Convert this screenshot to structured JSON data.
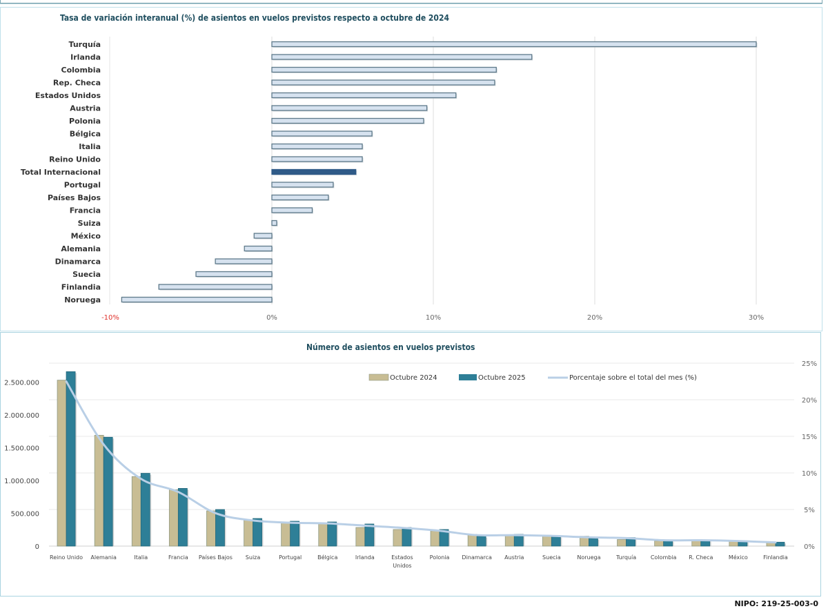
{
  "footer": {
    "nipo": "NIPO: 219-25-003-0"
  },
  "colors": {
    "bar_fill": "#d6e2ef",
    "bar_stroke": "#5f7a8a",
    "bar_total": "#2f5b88",
    "oct2024": "#c8bd94",
    "oct2025": "#2e7f97",
    "pct_line": "#b9cfe6",
    "negative_tick": "#e0302a",
    "title": "#1f4e5f"
  },
  "chart_data": [
    {
      "type": "bar",
      "orientation": "horizontal",
      "title": "Tasa de variación interanual (%) de asientos en vuelos previstos respecto a octubre de 2024",
      "categories": [
        "Turquía",
        "Irlanda",
        "Colombia",
        "Rep. Checa",
        "Estados Unidos",
        "Austria",
        "Polonia",
        "Bélgica",
        "Italia",
        "Reino Unido",
        "Total Internacional",
        "Portugal",
        "Países Bajos",
        "Francia",
        "Suiza",
        "México",
        "Alemania",
        "Dinamarca",
        "Suecia",
        "Finlandia",
        "Noruega"
      ],
      "values": [
        30.0,
        16.1,
        13.9,
        13.8,
        11.4,
        9.6,
        9.4,
        6.2,
        5.6,
        5.6,
        5.2,
        3.8,
        3.5,
        2.5,
        0.3,
        -1.1,
        -1.7,
        -3.5,
        -4.7,
        -7.0,
        -9.3
      ],
      "highlight": "Total Internacional",
      "xlim": [
        -10,
        30
      ],
      "xticks": [
        -10,
        0,
        10,
        20,
        30
      ],
      "xtick_labels": [
        "-10%",
        "0%",
        "10%",
        "20%",
        "30%"
      ],
      "grid": "vertical",
      "xlabel": "",
      "ylabel": ""
    },
    {
      "type": "bar",
      "title": "Número de asientos en vuelos previstos",
      "categories": [
        "Reino Unido",
        "Alemania",
        "Italia",
        "Francia",
        "Países Bajos",
        "Suiza",
        "Portugal",
        "Bélgica",
        "Irlanda",
        "Estados Unidos",
        "Polonia",
        "Dinamarca",
        "Austria",
        "Suecia",
        "Noruega",
        "Turquía",
        "Colombia",
        "R. Checa",
        "México",
        "Finlandia"
      ],
      "series": [
        {
          "name": "Octubre 2024",
          "type": "bar",
          "axis": "left",
          "values": [
            2530000,
            1690000,
            1060000,
            860000,
            537000,
            400000,
            368000,
            347000,
            284000,
            253000,
            232000,
            180000,
            165000,
            165000,
            150000,
            100000,
            80000,
            80000,
            78000,
            65000
          ]
        },
        {
          "name": "Octubre 2025",
          "type": "bar",
          "axis": "left",
          "values": [
            2660000,
            1660000,
            1110000,
            880000,
            558000,
            421000,
            379000,
            368000,
            337000,
            284000,
            253000,
            150000,
            180000,
            155000,
            118000,
            130000,
            90000,
            92000,
            77000,
            60000
          ]
        },
        {
          "name": "Porcentaje sobre el total del mes (%)",
          "type": "line",
          "axis": "right",
          "values": [
            22.5,
            13.9,
            9.2,
            7.4,
            4.5,
            3.5,
            3.2,
            3.1,
            2.8,
            2.5,
            2.1,
            1.5,
            1.5,
            1.4,
            1.2,
            1.1,
            0.8,
            0.8,
            0.7,
            0.5
          ]
        }
      ],
      "category_labels": [
        [
          "Reino Unido"
        ],
        [
          "Alemania"
        ],
        [
          "Italia"
        ],
        [
          "Francia"
        ],
        [
          "Países Bajos"
        ],
        [
          "Suiza"
        ],
        [
          "Portugal"
        ],
        [
          "Bélgica"
        ],
        [
          "Irlanda"
        ],
        [
          "Estados",
          "Unidos"
        ],
        [
          "Polonia"
        ],
        [
          "Dinamarca"
        ],
        [
          "Austria"
        ],
        [
          "Suecia"
        ],
        [
          "Noruega"
        ],
        [
          "Turquía"
        ],
        [
          "Colombia"
        ],
        [
          "R. Checa"
        ],
        [
          "México"
        ],
        [
          "Finlandia"
        ]
      ],
      "ylim_left": [
        0,
        2500000
      ],
      "yticks_left": [
        "0",
        "500.000",
        "1.000.000",
        "1.500.000",
        "2.000.000",
        "2.500.000"
      ],
      "ylim_right": [
        0,
        25
      ],
      "yticks_right": [
        "0%",
        "5%",
        "10%",
        "15%",
        "20%",
        "25%"
      ],
      "legend": "top-right",
      "grid": "horizontal",
      "xlabel": "",
      "ylabel": ""
    }
  ]
}
